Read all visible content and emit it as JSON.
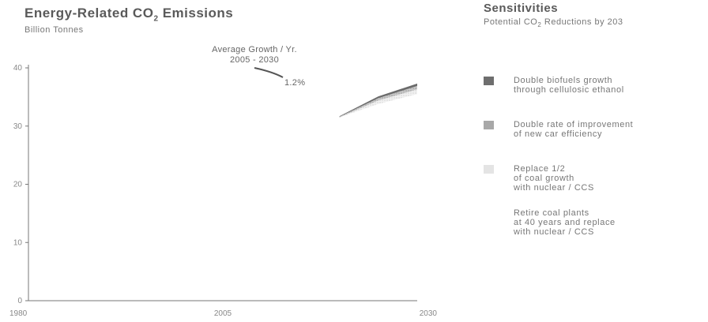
{
  "chart": {
    "title": "Energy-Related CO",
    "title_sub": "2",
    "title_tail": " Emissions",
    "unit": "Billion Tonnes",
    "annotation": {
      "line1": "Average Growth / Yr.",
      "line2": "2005 - 2030",
      "rate": "1.2%"
    }
  },
  "sensitivities": {
    "title": "Sensitivities",
    "subtitle": "Potential CO",
    "subtitle_sub": "2",
    "subtitle_tail": " Reductions by 203",
    "items": [
      {
        "label": "Double biofuels growth\nthrough cellulosic ethanol",
        "color": "#777777"
      },
      {
        "label": "Double rate of improvement\nof new car efficiency",
        "color": "#aaaaaa"
      },
      {
        "label": "Replace 1/2\nof coal growth\nwith nuclear / CCS",
        "color": "#e2e2e2"
      },
      {
        "label": "Retire coal plants\nat 40 years and replace\nwith nuclear / CCS",
        "color": "#ffffff"
      }
    ]
  },
  "chart_data": {
    "type": "area",
    "title": "Energy-Related CO2 Emissions",
    "ylabel": "Billion Tonnes",
    "x_ticks": [
      "1980",
      "2005",
      "2030"
    ],
    "y_ticks": [
      0,
      10,
      20,
      30,
      40
    ],
    "xlim": [
      1980,
      2030
    ],
    "ylim": [
      0,
      40
    ],
    "series": [
      {
        "name": "Retire coal plants at 40 years and replace with nuclear / CCS",
        "x": [
          2020,
          2025,
          2030
        ],
        "lower": [
          31.5,
          33.8,
          35.5
        ],
        "upper": [
          31.5,
          33.8,
          35.5
        ]
      },
      {
        "name": "Replace 1/2 of coal growth with nuclear / CCS",
        "x": [
          2020,
          2025,
          2030
        ],
        "lower": [
          31.5,
          33.8,
          35.5
        ],
        "upper": [
          31.5,
          34.4,
          36.3
        ]
      },
      {
        "name": "Double rate of improvement of new car efficiency",
        "x": [
          2020,
          2025,
          2030
        ],
        "lower": [
          31.5,
          34.4,
          36.3
        ],
        "upper": [
          31.6,
          34.8,
          36.9
        ]
      },
      {
        "name": "Double biofuels growth through cellulosic ethanol",
        "x": [
          2020,
          2025,
          2030
        ],
        "lower": [
          31.6,
          34.8,
          36.9
        ],
        "upper": [
          31.7,
          35.1,
          37.3
        ]
      }
    ]
  }
}
